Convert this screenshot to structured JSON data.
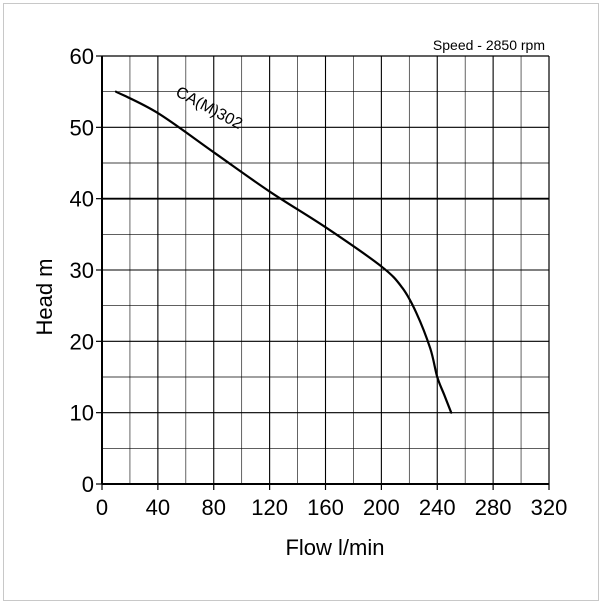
{
  "chart_data": {
    "type": "line",
    "title": "",
    "annotation": "Speed - 2850 rpm",
    "xlabel": "Flow l/min",
    "ylabel": "Head m",
    "xlim": [
      0,
      320
    ],
    "ylim": [
      0,
      60
    ],
    "x_ticks": [
      "0",
      "40",
      "80",
      "120",
      "160",
      "200",
      "240",
      "280",
      "320"
    ],
    "y_ticks": [
      "0",
      "10",
      "20",
      "30",
      "40",
      "50",
      "60"
    ],
    "grid": true,
    "series": [
      {
        "name": "CA(M)302",
        "color": "#000000",
        "x": [
          10,
          40,
          80,
          120,
          160,
          200,
          215,
          225,
          235,
          240,
          245,
          250
        ],
        "y": [
          55,
          52,
          46.5,
          41,
          36,
          30.5,
          27.5,
          24,
          19,
          15,
          12.5,
          10
        ]
      }
    ]
  }
}
